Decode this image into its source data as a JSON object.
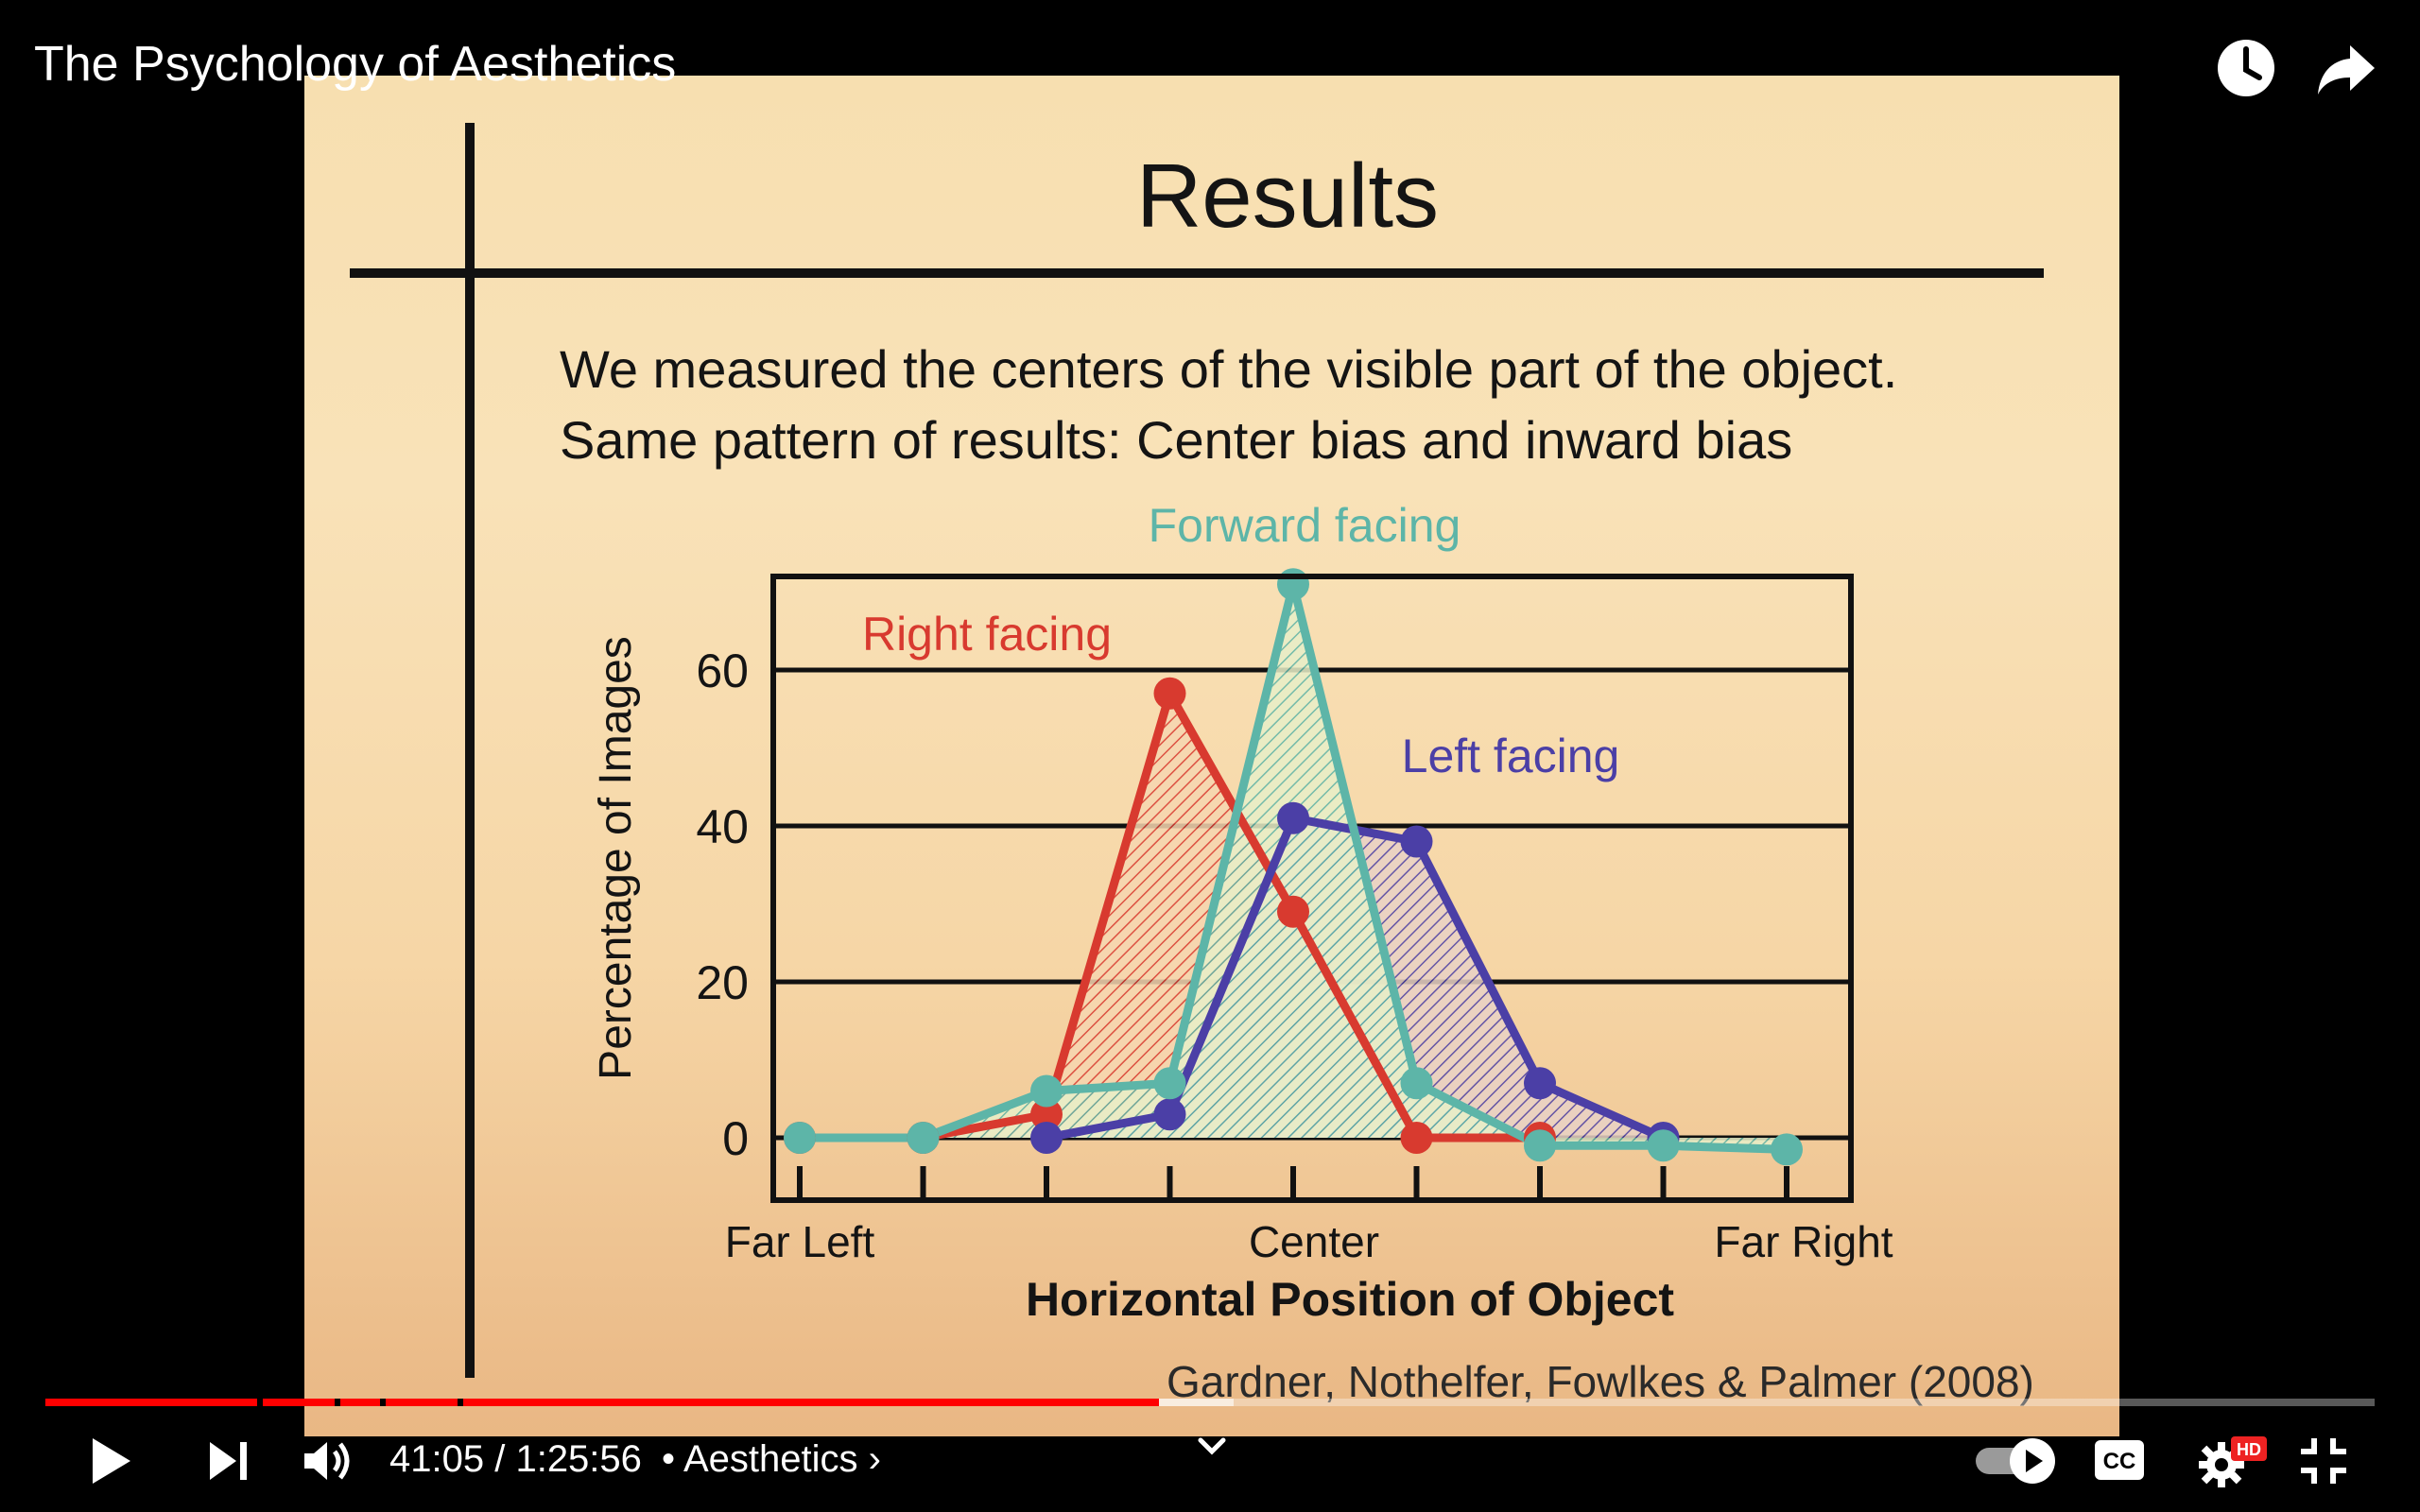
{
  "player": {
    "title": "The Psychology of Aesthetics",
    "time_current": "41:05",
    "time_separator": " / ",
    "time_total": "1:25:56",
    "chapter": "Aesthetics",
    "chapter_prefix": "• ",
    "chapter_suffix": " ›",
    "progress_played_fraction": 0.478,
    "progress_buffered_fraction": 0.51,
    "hd_badge": "HD",
    "autoplay_on": true,
    "icons": [
      "clock-icon",
      "share-icon",
      "play-icon",
      "next-icon",
      "volume-icon",
      "chevron-down-icon",
      "autoplay-toggle-icon",
      "captions-icon",
      "settings-icon",
      "exit-fullscreen-icon"
    ]
  },
  "slide": {
    "title": "Results",
    "line1": "We measured the centers of the visible part of the object.",
    "line2": "Same pattern of results: Center bias and inward bias",
    "citation": "Gardner, Nothelfer, Fowlkes & Palmer (2008)",
    "chart_data": {
      "type": "area",
      "xlabel": "Horizontal Position of Object",
      "ylabel": "Percentage of Images",
      "x_tick_labels": [
        "Far Left",
        "Center",
        "Far Right"
      ],
      "x": [
        1,
        2,
        3,
        4,
        5,
        6,
        7,
        8,
        9
      ],
      "ylim": [
        -8,
        72
      ],
      "yticks": [
        0,
        20,
        40,
        60
      ],
      "grid": true,
      "series": [
        {
          "name": "Right facing",
          "color": "#d83a2f",
          "values": [
            0,
            0,
            3,
            57,
            29,
            0,
            0,
            null,
            null
          ]
        },
        {
          "name": "Left facing",
          "color": "#4b3fa6",
          "values": [
            null,
            null,
            0,
            3,
            41,
            38,
            7,
            0,
            null
          ]
        },
        {
          "name": "Forward facing",
          "color": "#5db5a8",
          "values": [
            0,
            0,
            6,
            7,
            71,
            7,
            -1,
            -1,
            -1.5
          ]
        }
      ]
    }
  }
}
